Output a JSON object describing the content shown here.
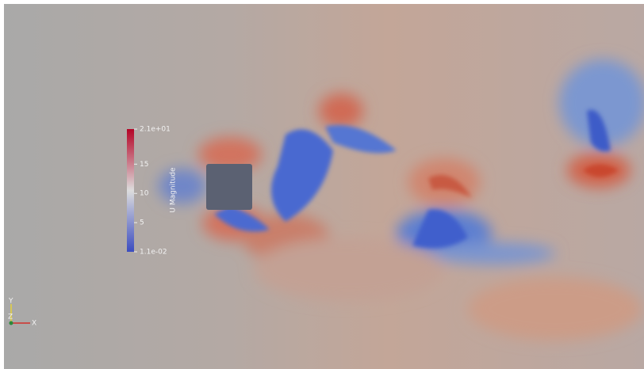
{
  "colorbar": {
    "title": "U Magnitude",
    "ticks": [
      {
        "value": 21,
        "label": "2.1e+01"
      },
      15,
      10,
      5,
      {
        "value": 0.011,
        "label": "1.1e-02"
      }
    ]
  },
  "axes": {
    "x": "X",
    "y": "Y",
    "z": "Z"
  }
}
